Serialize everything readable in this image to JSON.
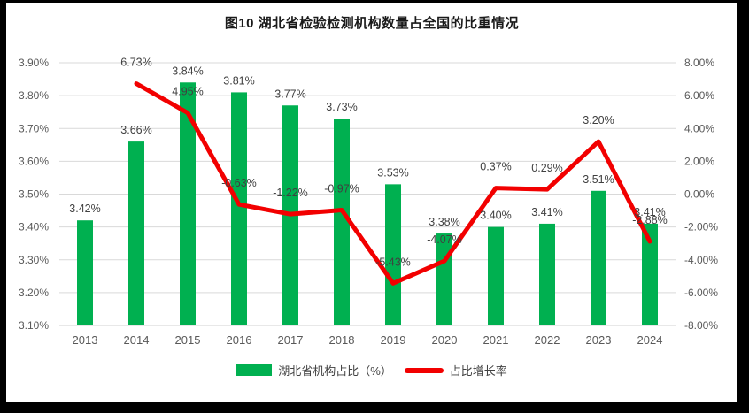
{
  "title": "图10 湖北省检验检测机构数量占全国的比重情况",
  "legend": {
    "bar_label": "湖北省机构占比（%）",
    "line_label": "占比增长率"
  },
  "colors": {
    "bar": "#00B050",
    "line": "#F20000",
    "grid": "#D9D9D9",
    "axis_line": "#D0D0D0",
    "tick_text": "#595959",
    "label_text": "#404040"
  },
  "chart_data": {
    "type": "bar",
    "subtype": "combo-bar-line-dual-axis",
    "title": "图10 湖北省检验检测机构数量占全国的比重情况",
    "categories": [
      "2013",
      "2014",
      "2015",
      "2016",
      "2017",
      "2018",
      "2019",
      "2020",
      "2021",
      "2022",
      "2023",
      "2024"
    ],
    "series": [
      {
        "name": "湖北省机构占比（%）",
        "type": "bar",
        "axis": "left",
        "values": [
          3.42,
          3.66,
          3.84,
          3.81,
          3.77,
          3.73,
          3.53,
          3.38,
          3.4,
          3.41,
          3.51,
          3.41
        ],
        "labels": [
          "3.42%",
          "3.66%",
          "3.84%",
          "3.81%",
          "3.77%",
          "3.73%",
          "3.53%",
          "3.38%",
          "3.40%",
          "3.41%",
          "3.51%",
          "3.41%"
        ]
      },
      {
        "name": "占比增长率",
        "type": "line",
        "axis": "right",
        "values": [
          null,
          6.73,
          4.95,
          -0.63,
          -1.22,
          -0.97,
          -5.43,
          -4.07,
          0.37,
          0.29,
          3.2,
          -2.88
        ],
        "labels": [
          null,
          "6.73%",
          "4.95%",
          "-0.63%",
          "-1.22%",
          "-0.97%",
          "-5.43%",
          "-4.07%",
          "0.37%",
          "0.29%",
          "3.20%",
          "-2.88%"
        ]
      }
    ],
    "left_axis": {
      "min": 3.1,
      "max": 3.9,
      "tick_labels": [
        "3.10%",
        "3.20%",
        "3.30%",
        "3.40%",
        "3.50%",
        "3.60%",
        "3.70%",
        "3.80%",
        "3.90%"
      ]
    },
    "right_axis": {
      "min": -8.0,
      "max": 8.0,
      "tick_labels": [
        "-8.00%",
        "-6.00%",
        "-4.00%",
        "-2.00%",
        "0.00%",
        "2.00%",
        "4.00%",
        "6.00%",
        "8.00%"
      ]
    },
    "grid": true,
    "legend_position": "bottom"
  }
}
